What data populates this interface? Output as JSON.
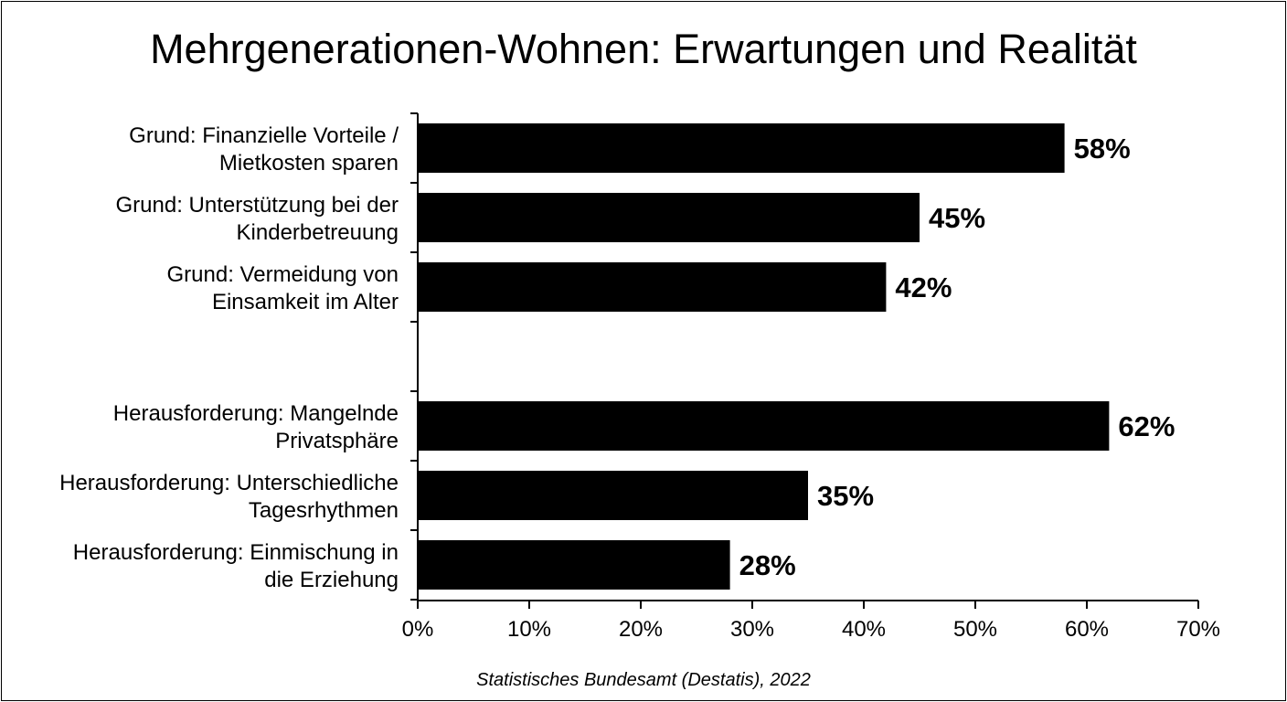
{
  "chart_data": {
    "type": "bar",
    "orientation": "horizontal",
    "title": "Mehrgenerationen-Wohnen: Erwartungen und Realität",
    "categories": [
      [
        "Grund: Finanzielle Vorteile /",
        "Mietkosten sparen"
      ],
      [
        "Grund: Unterstützung bei der",
        "Kinderbetreuung"
      ],
      [
        "Grund: Vermeidung von",
        "Einsamkeit im Alter"
      ],
      [
        "Herausforderung: Mangelnde",
        "Privatsphäre"
      ],
      [
        "Herausforderung: Unterschiedliche",
        "Tagesrhythmen"
      ],
      [
        "Herausforderung: Einmischung in",
        "die Erziehung"
      ]
    ],
    "groups": [
      [
        0,
        1,
        2
      ],
      [
        3,
        4,
        5
      ]
    ],
    "values": [
      58,
      45,
      42,
      62,
      35,
      28
    ],
    "value_labels": [
      "58%",
      "45%",
      "42%",
      "62%",
      "35%",
      "28%"
    ],
    "xlim": [
      0,
      70
    ],
    "xticks": [
      0,
      10,
      20,
      30,
      40,
      50,
      60,
      70
    ],
    "xtick_labels": [
      "0%",
      "10%",
      "20%",
      "30%",
      "40%",
      "50%",
      "60%",
      "70%"
    ],
    "xlabel": "",
    "ylabel": "",
    "grid": false,
    "legend": "none",
    "bar_color": "#000000",
    "source": "Statistisches Bundesamt (Destatis), 2022"
  }
}
